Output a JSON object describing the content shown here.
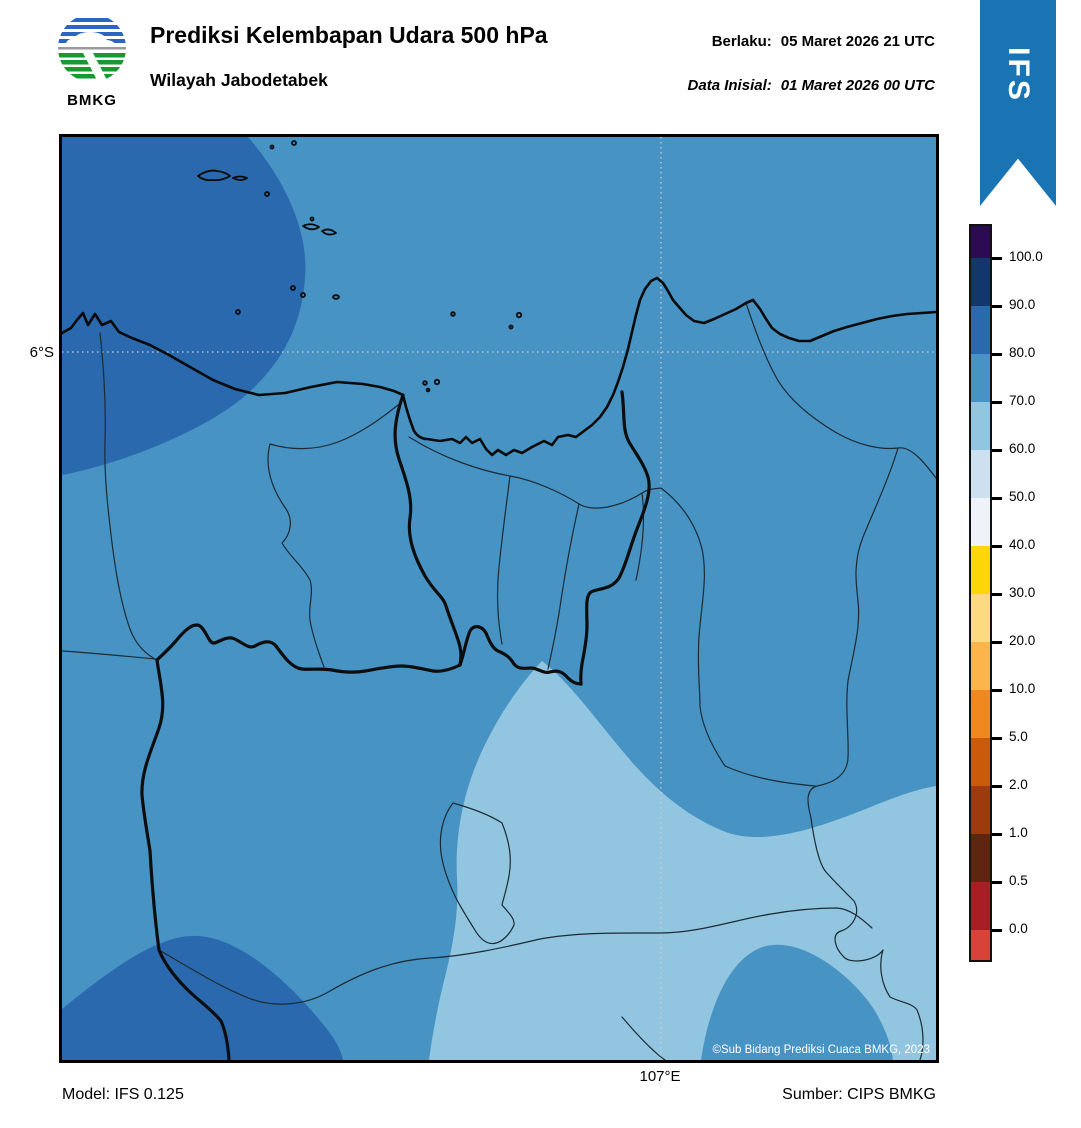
{
  "header": {
    "logo_text": "BMKG",
    "title": "Prediksi Kelembapan Udara 500 hPa",
    "subtitle": "Wilayah Jabodetabek",
    "valid_label": "Berlaku:",
    "valid_value": "05 Maret 2026 21 UTC",
    "init_label": "Data Inisial:",
    "init_value": "01 Maret 2026 00 UTC",
    "ribbon_label": "IFS"
  },
  "map": {
    "axis": {
      "lat_label": "6°S",
      "lon_label": "107°E"
    },
    "copyright": "©Sub Bidang Prediksi Cuaca BMKG, 2023",
    "colors": {
      "base": "#4793c4",
      "band_80_90": "#2a69ae",
      "band_60_70": "#92c5df",
      "gridline": "#cfcfcf",
      "coastline": "#0a0a0a",
      "boundary_thick": "#0d0d0d",
      "boundary_thin": "#1c2b33",
      "copyright_color": "#ffffff"
    }
  },
  "colorbar": {
    "tick_labels": [
      "100.0",
      "90.0",
      "80.0",
      "70.0",
      "60.0",
      "50.0",
      "40.0",
      "30.0",
      "20.0",
      "10.0",
      "5.0",
      "2.0",
      "1.0",
      "0.5",
      "0.0"
    ],
    "segment_colors": [
      "#2d0b52",
      "#12386b",
      "#2a69ae",
      "#4793c4",
      "#92c5df",
      "#cde0ef",
      "#eef3f9",
      "#ffd708",
      "#fdd97f",
      "#fdb44a",
      "#f0871f",
      "#cb5a0b",
      "#9e3a10",
      "#5c2610",
      "#a81e24",
      "#d8423b"
    ],
    "segment_heights": [
      32,
      48,
      48,
      48,
      48,
      48,
      48,
      48,
      48,
      48,
      48,
      48,
      48,
      48,
      48,
      30
    ]
  },
  "footer": {
    "model": "Model: IFS 0.125",
    "source": "Sumber: CIPS BMKG"
  },
  "ribbon_color": "#1a74b4"
}
